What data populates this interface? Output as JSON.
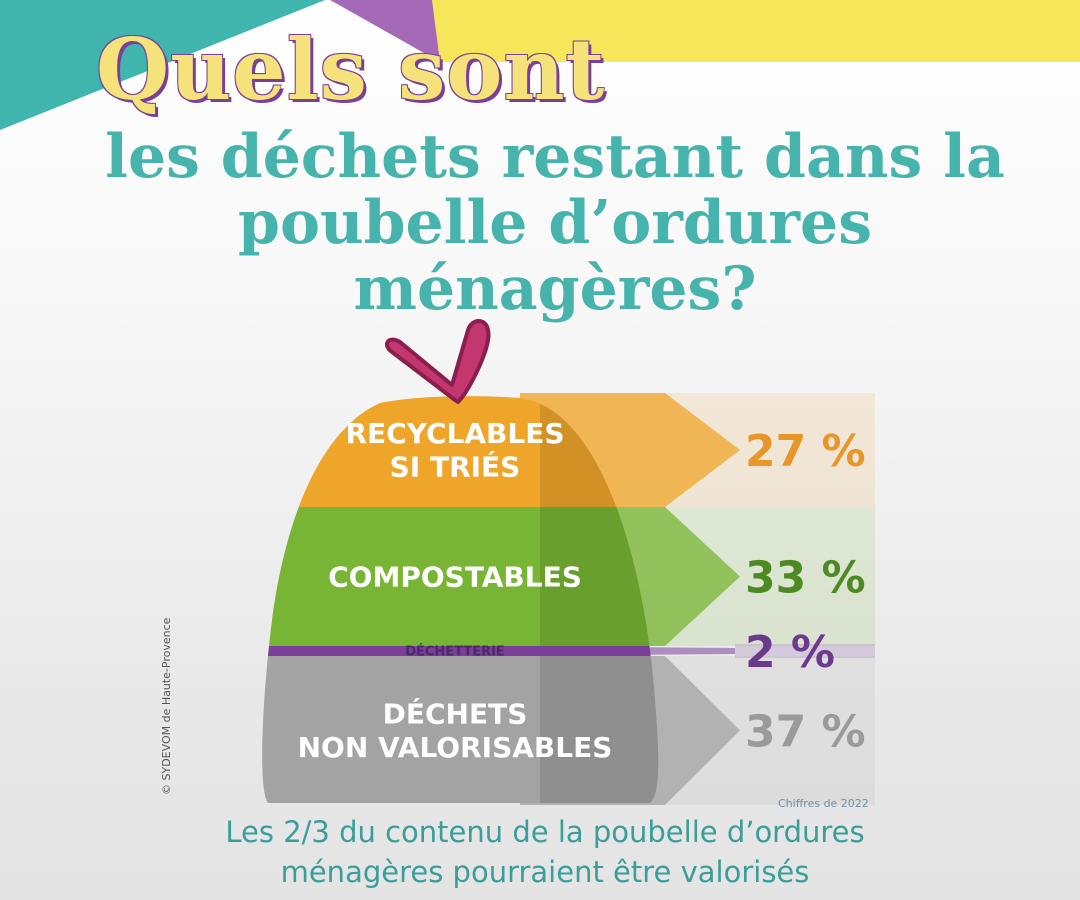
{
  "title": {
    "line1": "Quels sont",
    "line2": "les déchets restant dans la",
    "line3": "poubelle d’ordures",
    "line4": "ménagères?"
  },
  "credit": "© SYDEVOM de Haute-Provence",
  "year_note": "Chiffres de 2022",
  "footer": {
    "line1": "Les 2/3 du contenu de la poubelle d’ordures",
    "line2": "ménagères pourraient être valorisés"
  },
  "colors": {
    "teal": "#47b3ad",
    "yellow": "#f6e27a",
    "purple": "#7b3f9a",
    "orange": "#efa529",
    "green": "#78b534",
    "gray": "#a3a3a3"
  },
  "chart_data": {
    "type": "bar",
    "orientation": "stacked",
    "categories": [
      [
        "RECYCLABLES",
        "SI TRIÉS"
      ],
      [
        "COMPOSTABLES"
      ],
      [
        "DÉCHETTERIE"
      ],
      [
        "DÉCHETS",
        "NON VALORISABLES"
      ]
    ],
    "values": [
      27,
      33,
      2,
      37
    ],
    "value_labels": [
      "27 %",
      "33 %",
      "2 %",
      "37 %"
    ],
    "series_colors": [
      "#efa529",
      "#78b534",
      "#7b3f9a",
      "#a3a3a3"
    ],
    "value_colors": [
      "#e8962a",
      "#4d8a22",
      "#6b3a8c",
      "#9a9a9a"
    ],
    "unit": "%"
  }
}
